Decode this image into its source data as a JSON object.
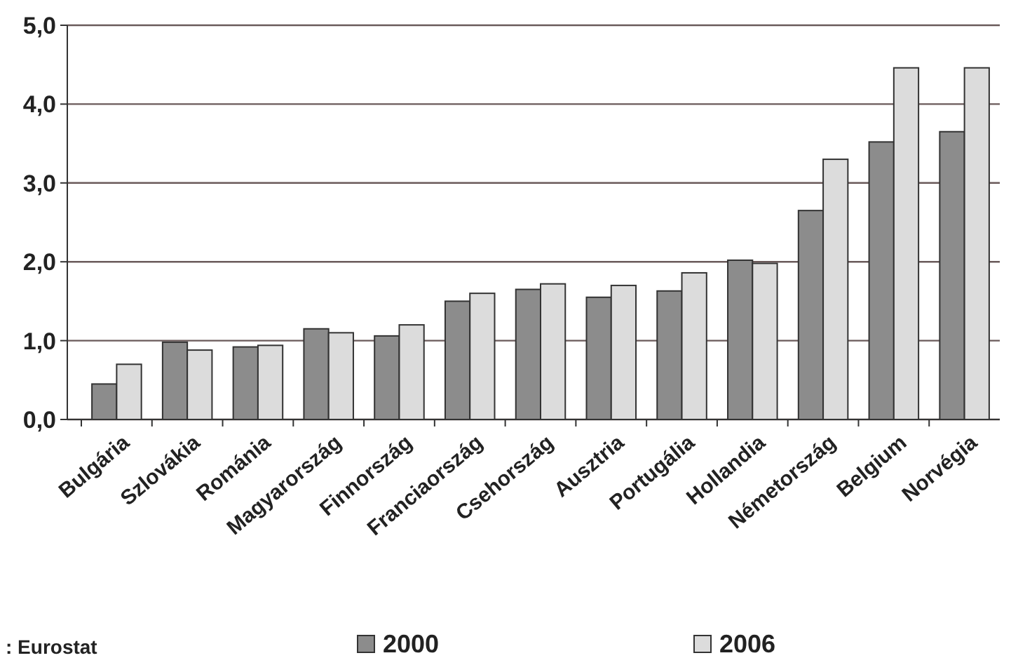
{
  "chart_data": {
    "type": "bar",
    "categories": [
      "Bulgária",
      "Szlovákia",
      "Románia",
      "Magyarország",
      "Finnország",
      "Franciaország",
      "Csehország",
      "Ausztria",
      "Portugália",
      "Hollandia",
      "Németország",
      "Belgium",
      "Norvégia"
    ],
    "series": [
      {
        "name": "2000",
        "color": "#8c8c8c",
        "values": [
          0.45,
          0.98,
          0.92,
          1.15,
          1.06,
          1.5,
          1.65,
          1.55,
          1.63,
          2.02,
          2.65,
          3.52,
          3.65
        ]
      },
      {
        "name": "2006",
        "color": "#dcdcdc",
        "values": [
          0.7,
          0.88,
          0.94,
          1.1,
          1.2,
          1.6,
          1.72,
          1.7,
          1.86,
          1.98,
          3.3,
          4.46,
          4.46
        ]
      }
    ],
    "ylim": [
      0,
      5
    ],
    "yticks": [
      {
        "value": 0,
        "label": "0,0"
      },
      {
        "value": 1,
        "label": "1,0"
      },
      {
        "value": 2,
        "label": "2,0"
      },
      {
        "value": 3,
        "label": "3,0"
      },
      {
        "value": 4,
        "label": "4,0"
      },
      {
        "value": 5,
        "label": "5,0"
      }
    ],
    "grid": "y",
    "legend": "bottom",
    "annotations": [
      ": Eurostat"
    ]
  }
}
